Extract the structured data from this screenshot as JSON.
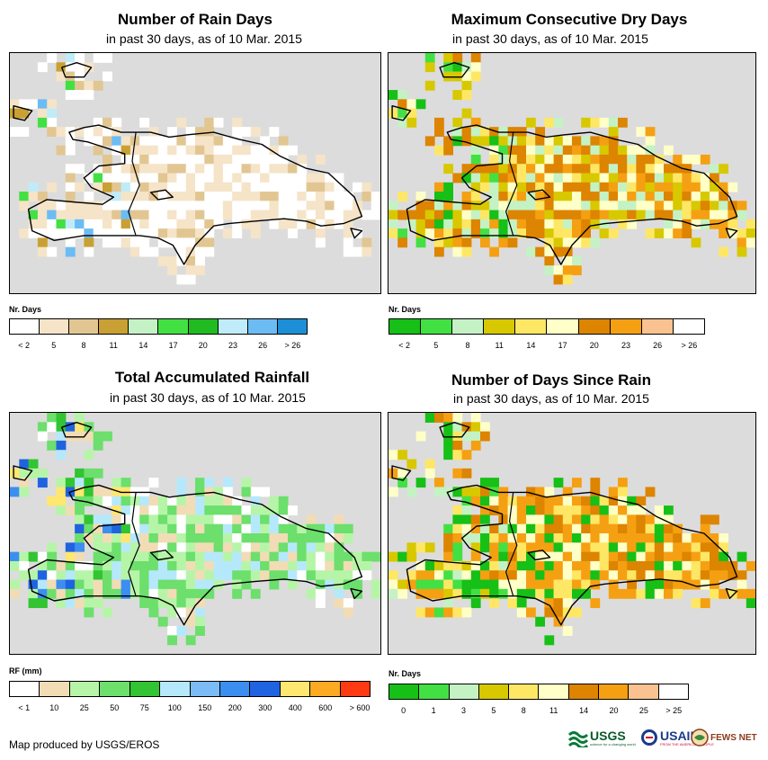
{
  "panels": [
    {
      "title": "Number of Rain Days",
      "subtitle": "in past 30 days, as of 10 Mar. 2015",
      "legend_unit": "Nr. Days",
      "legend_labels": [
        "< 2",
        "5",
        "8",
        "11",
        "14",
        "17",
        "20",
        "23",
        "26",
        "> 26"
      ],
      "legend_colors": [
        "#ffffff",
        "#f5e4c8",
        "#e2c692",
        "#c9a033",
        "#c4f2c4",
        "#43e043",
        "#20bb20",
        "#bfecf8",
        "#6cbcf4",
        "#1c8fd6"
      ]
    },
    {
      "title": "Maximum Consecutive Dry Days",
      "subtitle": "in past 30 days, as of 10 Mar. 2015",
      "legend_unit": "Nr. Days",
      "legend_labels": [
        "< 2",
        "5",
        "8",
        "11",
        "14",
        "17",
        "20",
        "23",
        "26",
        "> 26"
      ],
      "legend_colors": [
        "#16c016",
        "#43e043",
        "#c4f2c4",
        "#d8c800",
        "#ffe766",
        "#ffffc8",
        "#dd8400",
        "#f5a012",
        "#f9c290",
        "#ffffff"
      ]
    },
    {
      "title": "Total Accumulated Rainfall",
      "subtitle": "in past 30 days, as of 10 Mar. 2015",
      "legend_unit": "RF (mm)",
      "legend_labels": [
        "< 1",
        "10",
        "25",
        "50",
        "75",
        "100",
        "150",
        "200",
        "300",
        "400",
        "600",
        "> 600"
      ],
      "legend_colors": [
        "#ffffff",
        "#f2dcb5",
        "#b6f5a8",
        "#6cdf6c",
        "#32c432",
        "#b6e8fc",
        "#7cbcf6",
        "#3c8ef0",
        "#1f63e0",
        "#ffe770",
        "#fcaa22",
        "#ff3a12"
      ]
    },
    {
      "title": "Number of Days Since Rain",
      "subtitle": "in past 30 days, as of 10 Mar. 2015",
      "legend_unit": "Nr. Days",
      "legend_labels": [
        "0",
        "1",
        "3",
        "5",
        "8",
        "11",
        "14",
        "20",
        "25",
        "> 25"
      ],
      "legend_colors": [
        "#16c016",
        "#43e043",
        "#c4f2c4",
        "#d8c800",
        "#ffe766",
        "#ffffc8",
        "#dd8400",
        "#f5a012",
        "#f9c290",
        "#ffffff"
      ]
    }
  ],
  "footer": "Map produced by USGS/EROS",
  "logos": {
    "usgs": "USGS",
    "usgs_tag": "science for a changing world",
    "usaid": "USAID",
    "usaid_tag": "FROM THE AMERICAN PEOPLE",
    "fews": "FEWS NET"
  }
}
